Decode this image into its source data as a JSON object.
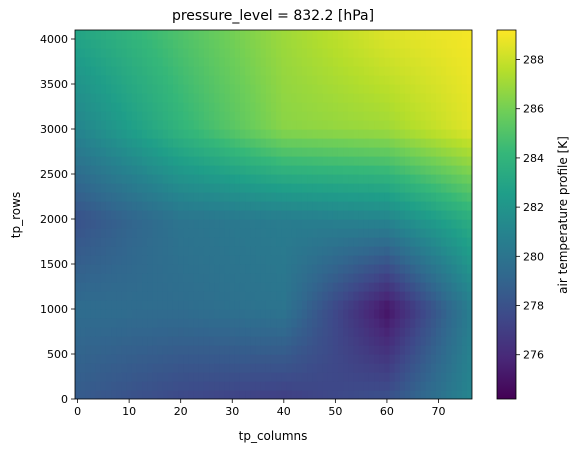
{
  "chart_data": {
    "type": "heatmap",
    "title": "pressure_level = 832.2 [hPa]",
    "xlabel": "tp_columns",
    "ylabel": "tp_rows",
    "colorbar_label": "air temperature profile [K]",
    "colormap": "viridis",
    "xlim": [
      -0.5,
      76.5
    ],
    "ylim": [
      0,
      4100
    ],
    "vmin": 274.2,
    "vmax": 289.2,
    "x_ticks": [
      "0",
      "10",
      "20",
      "30",
      "40",
      "50",
      "60",
      "70"
    ],
    "y_ticks": [
      "0",
      "500",
      "1000",
      "1500",
      "2000",
      "2500",
      "3000",
      "3500",
      "4000"
    ],
    "colorbar_ticks": [
      "276",
      "278",
      "280",
      "282",
      "284",
      "286",
      "288"
    ],
    "grid_x": [
      0,
      20,
      40,
      60,
      76
    ],
    "grid_y": [
      0,
      1000,
      2000,
      3000,
      4100
    ],
    "values": [
      [
        278.5,
        277.5,
        277.0,
        278.0,
        281.0
      ],
      [
        279.5,
        279.5,
        280.0,
        275.0,
        280.5
      ],
      [
        278.0,
        280.0,
        280.5,
        281.0,
        283.5
      ],
      [
        281.0,
        284.0,
        286.5,
        287.0,
        288.5
      ],
      [
        283.0,
        285.0,
        287.0,
        288.5,
        289.0
      ]
    ]
  }
}
